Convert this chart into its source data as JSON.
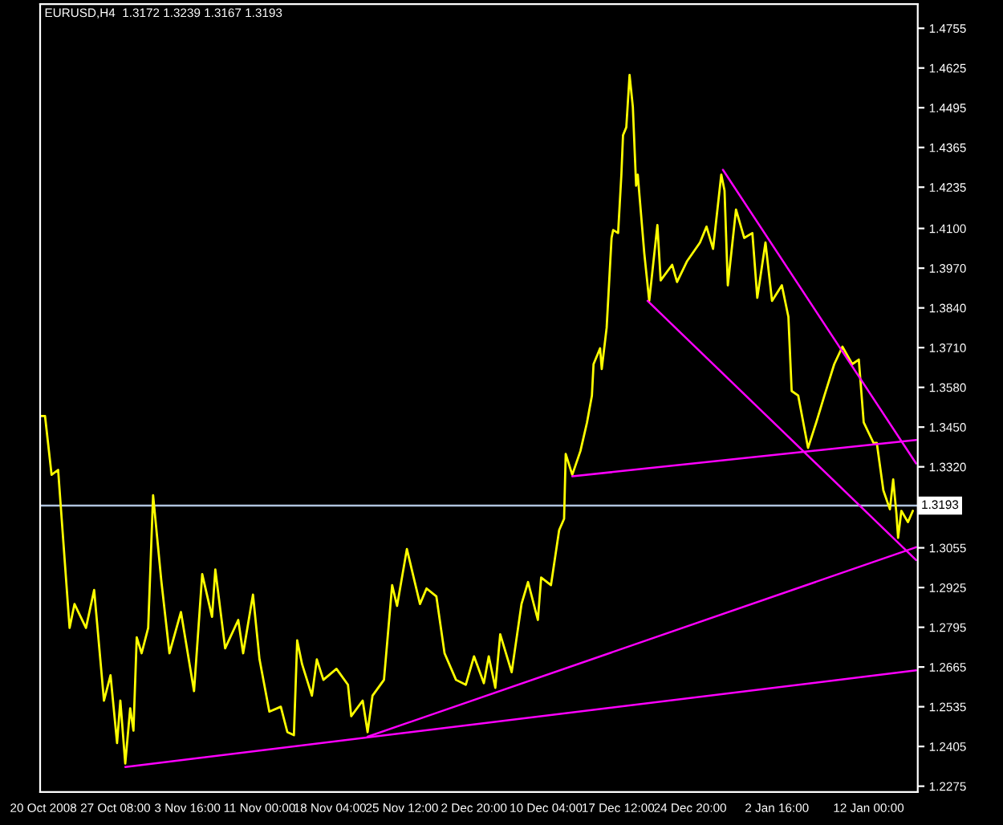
{
  "chart_data": {
    "type": "line",
    "title": "EURUSD,H4  1.3172 1.3239 1.3167 1.3193",
    "series": [
      {
        "color": "#ffff00",
        "x": [
          "2008-10-19T16:00",
          "2008-10-20T04:00",
          "2008-10-20T20:00",
          "2008-10-21T12:00",
          "2008-10-22T16:00",
          "2008-10-23T04:00",
          "2008-10-24T08:00",
          "2008-10-25T04:00",
          "2008-10-26T04:00",
          "2008-10-26T20:00",
          "2008-10-27T12:00",
          "2008-10-27T20:00",
          "2008-10-28T08:00",
          "2008-10-28T20:00",
          "2008-10-29T04:00",
          "2008-10-29T12:00",
          "2008-10-30T00:00",
          "2008-10-30T16:00",
          "2008-10-31T04:00",
          "2008-11-01T00:00",
          "2008-11-01T20:00",
          "2008-11-03T00:00",
          "2008-11-04T08:00",
          "2008-11-05T04:00",
          "2008-11-06T04:00",
          "2008-11-06T12:00",
          "2008-11-07T12:00",
          "2008-11-08T20:00",
          "2008-11-09T08:00",
          "2008-11-10T08:00",
          "2008-11-11T00:00",
          "2008-11-12T00:00",
          "2008-11-13T04:00",
          "2008-11-13T20:00",
          "2008-11-14T12:00",
          "2008-11-14T20:00",
          "2008-11-15T08:00",
          "2008-11-16T08:00",
          "2008-11-16T20:00",
          "2008-11-17T12:00",
          "2008-11-18T20:00",
          "2008-11-20T00:00",
          "2008-11-20T08:00",
          "2008-11-21T12:00",
          "2008-11-22T00:00",
          "2008-11-22T12:00",
          "2008-11-23T16:00",
          "2008-11-24T12:00",
          "2008-11-25T00:00",
          "2008-11-26T00:00",
          "2008-11-27T08:00",
          "2008-11-28T00:00",
          "2008-11-29T00:00",
          "2008-11-29T20:00",
          "2008-12-01T00:00",
          "2008-12-02T00:00",
          "2008-12-02T20:00",
          "2008-12-03T20:00",
          "2008-12-04T08:00",
          "2008-12-05T00:00",
          "2008-12-05T12:00",
          "2008-12-06T16:00",
          "2008-12-07T16:00",
          "2008-12-08T08:00",
          "2008-12-09T08:00",
          "2008-12-09T16:00",
          "2008-12-10T16:00",
          "2008-12-11T12:00",
          "2008-12-12T00:00",
          "2008-12-12T04:00",
          "2008-12-12T20:00",
          "2008-12-13T16:00",
          "2008-12-14T08:00",
          "2008-12-14T20:00",
          "2008-12-15T00:00",
          "2008-12-15T16:00",
          "2008-12-15T20:00",
          "2008-12-16T08:00",
          "2008-12-16T20:00",
          "2008-12-17T00:00",
          "2008-12-17T12:00",
          "2008-12-17T20:00",
          "2008-12-18T00:00",
          "2008-12-18T08:00",
          "2008-12-18T16:00",
          "2008-12-19T00:00",
          "2008-12-19T08:00",
          "2008-12-19T12:00",
          "2008-12-20T04:00",
          "2008-12-20T16:00",
          "2008-12-21T12:00",
          "2008-12-21T20:00",
          "2008-12-23T00:00",
          "2008-12-23T12:00",
          "2008-12-24T12:00",
          "2008-12-25T20:00",
          "2008-12-26T12:00",
          "2008-12-27T04:00",
          "2008-12-28T00:00",
          "2008-12-28T08:00",
          "2008-12-28T16:00",
          "2008-12-29T12:00",
          "2008-12-30T08:00",
          "2008-12-31T04:00",
          "2008-12-31T16:00",
          "2009-01-01T12:00",
          "2009-01-02T04:00",
          "2009-01-03T04:00",
          "2009-01-03T20:00",
          "2009-01-04T04:00",
          "2009-01-04T20:00",
          "2009-01-05T20:00",
          "2009-01-06T16:00",
          "2009-01-07T12:00",
          "2009-01-08T12:00",
          "2009-01-09T08:00",
          "2009-01-10T08:00",
          "2009-01-11T00:00",
          "2009-01-11T12:00",
          "2009-01-12T12:00",
          "2009-01-12T20:00",
          "2009-01-13T12:00",
          "2009-01-14T04:00",
          "2009-01-14T12:00",
          "2009-01-14T20:00",
          "2009-01-15T00:00",
          "2009-01-15T08:00",
          "2009-01-16T00:00",
          "2009-01-16T12:00"
        ],
        "values": [
          1.3486,
          1.3486,
          1.3294,
          1.331,
          1.2793,
          1.2871,
          1.2793,
          1.2917,
          1.2555,
          1.2638,
          1.2416,
          1.2555,
          1.2349,
          1.253,
          1.2457,
          1.2762,
          1.271,
          1.2793,
          1.3227,
          1.2948,
          1.271,
          1.2845,
          1.2586,
          1.2969,
          1.2829,
          1.2984,
          1.2726,
          1.2819,
          1.271,
          1.2902,
          1.269,
          1.2519,
          1.2535,
          1.2452,
          1.2442,
          1.2752,
          1.2674,
          1.2571,
          1.269,
          1.2623,
          1.2659,
          1.2607,
          1.2504,
          1.2555,
          1.2452,
          1.2571,
          1.2623,
          1.2933,
          1.2865,
          1.3051,
          1.2871,
          1.2922,
          1.2896,
          1.271,
          1.2623,
          1.2607,
          1.27,
          1.2612,
          1.27,
          1.2597,
          1.2772,
          1.2648,
          1.2871,
          1.2943,
          1.2819,
          1.2958,
          1.2933,
          1.3113,
          1.315,
          1.3362,
          1.3294,
          1.3372,
          1.3465,
          1.3553,
          1.3656,
          1.3708,
          1.364,
          1.3775,
          1.4069,
          1.4095,
          1.4085,
          1.4276,
          1.4405,
          1.4431,
          1.4602,
          1.4498,
          1.424,
          1.4276,
          1.4018,
          1.3863,
          1.4111,
          1.393,
          1.3981,
          1.3925,
          1.3992,
          1.4054,
          1.4106,
          1.4033,
          1.4276,
          1.4224,
          1.3914,
          1.4162,
          1.4069,
          1.4085,
          1.3873,
          1.4054,
          1.3863,
          1.3914,
          1.3811,
          1.3568,
          1.3553,
          1.3382,
          1.3465,
          1.3553,
          1.3656,
          1.3713,
          1.3656,
          1.3671,
          1.3465,
          1.3398,
          1.3398,
          1.3243,
          1.3181,
          1.3279,
          1.3165,
          1.3088,
          1.3176,
          1.3139,
          1.3176
        ]
      },
      {
        "color": "#ff00ff",
        "x": [
          "2008-10-28T08:00",
          "2009-01-16T20:00"
        ],
        "values": [
          1.2338,
          1.2654
        ]
      },
      {
        "color": "#ff00ff",
        "x": [
          "2008-11-22T00:00",
          "2009-01-16T20:00"
        ],
        "values": [
          1.2437,
          1.3057
        ]
      },
      {
        "color": "#ff00ff",
        "x": [
          "2008-12-12T20:00",
          "2009-01-16T20:00"
        ],
        "values": [
          1.3289,
          1.3408
        ]
      },
      {
        "color": "#ff00ff",
        "x": [
          "2008-12-20T12:00",
          "2009-01-16T20:00"
        ],
        "values": [
          1.3863,
          1.3015
        ]
      },
      {
        "color": "#ff00ff",
        "x": [
          "2008-12-28T04:00",
          "2009-01-16T20:00"
        ],
        "values": [
          1.4292,
          1.3331
        ]
      }
    ],
    "ref_lines": [
      {
        "axis": "y",
        "value": 1.3193,
        "label": "1.3193",
        "color": "#b0c4de"
      }
    ],
    "xlim": [
      "2008-10-19T16:00",
      "2009-01-17T00:00"
    ],
    "xticks": [
      {
        "value": "2008-10-20T00:00",
        "label": "20 Oct 2008"
      },
      {
        "value": "2008-10-27T08:00",
        "label": "27 Oct 08:00"
      },
      {
        "value": "2008-11-03T16:00",
        "label": "3 Nov 16:00"
      },
      {
        "value": "2008-11-11T00:00",
        "label": "11 Nov 00:00"
      },
      {
        "value": "2008-11-18T04:00",
        "label": "18 Nov 04:00"
      },
      {
        "value": "2008-11-25T12:00",
        "label": "25 Nov 12:00"
      },
      {
        "value": "2008-12-02T20:00",
        "label": "2 Dec 20:00"
      },
      {
        "value": "2008-12-10T04:00",
        "label": "10 Dec 04:00"
      },
      {
        "value": "2008-12-17T12:00",
        "label": "17 Dec 12:00"
      },
      {
        "value": "2008-12-24T20:00",
        "label": "24 Dec 20:00"
      },
      {
        "value": "2009-01-02T16:00",
        "label": "2 Jan 16:00"
      },
      {
        "value": "2009-01-12T00:00",
        "label": "12 Jan 00:00"
      }
    ],
    "ylim": [
      1.2256,
      1.4834
    ],
    "yticks": [
      1.4755,
      1.4625,
      1.4495,
      1.4365,
      1.4235,
      {
        "value": 1.41,
        "label": "1.4100"
      },
      {
        "value": 1.397,
        "label": "1.3970"
      },
      {
        "value": 1.384,
        "label": "1.3840"
      },
      {
        "value": 1.371,
        "label": "1.3710"
      },
      {
        "value": 1.358,
        "label": "1.3580"
      },
      {
        "value": 1.345,
        "label": "1.3450"
      },
      {
        "value": 1.332,
        "label": "1.3320"
      },
      1.3055,
      1.2925,
      1.2795,
      1.2665,
      1.2535,
      1.2405,
      1.2275
    ],
    "marker": "none",
    "line_style": "solid"
  }
}
